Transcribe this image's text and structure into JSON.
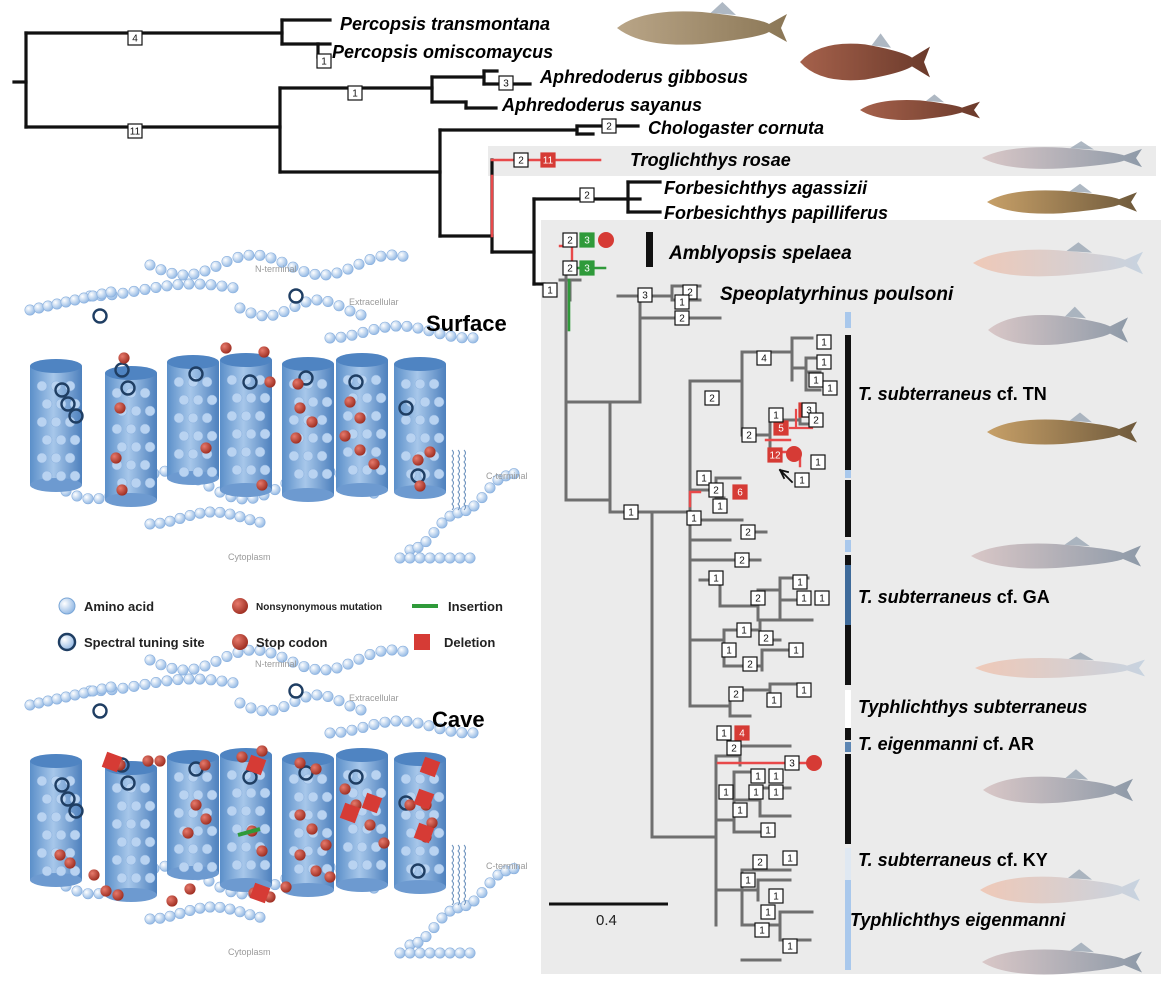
{
  "taxa": {
    "percopsis_transmontana": "Percopsis transmontana",
    "percopsis_omiscomaycus": "Percopsis omiscomaycus",
    "aphredoderus_gibbosus": "Aphredoderus gibbosus",
    "aphredoderus_sayanus": "Aphredoderus sayanus",
    "chologaster_cornuta": "Chologaster cornuta",
    "troglichthys_rosae": "Troglichthys rosae",
    "forbesichthys_agassizii": "Forbesichthys agassizii",
    "forbesichthys_papilliferus": "Forbesichthys papilliferus",
    "amblyopsis_spelaea": "Amblyopsis spelaea",
    "speoplatyrhinus_poulsoni": "Speoplatyrhinus poulsoni"
  },
  "clades": {
    "tn_genus": "T. subterraneus",
    "tn_suffix": "cf. TN",
    "ga_genus": "T. subterraneus",
    "ga_suffix": "cf. GA",
    "typhlichthys_subterraneus": "Typhlichthys subterraneus",
    "ar_genus": "T. eigenmanni",
    "ar_suffix": "cf. AR",
    "ky_genus": "T. subterraneus",
    "ky_suffix": "cf. KY",
    "typhlichthys_eigenmanni": "Typhlichthys eigenmanni"
  },
  "panels": {
    "surface_title": "Surface",
    "cave_title": "Cave",
    "n_terminal": "N-terminal",
    "c_terminal": "C-terminal",
    "extracellular": "Extracellular",
    "cytoplasm": "Cytoplasm"
  },
  "legend": {
    "amino_acid": "Amino acid",
    "nonsynonymous": "Nonsynonymous mutation",
    "insertion": "Insertion",
    "spectral": "Spectral tuning site",
    "stop_codon": "Stop codon",
    "deletion": "Deletion"
  },
  "scale_bar": {
    "label": "0.4",
    "value": 0.4
  },
  "mutation_counts": {
    "percopsis_stem": "4",
    "percopsis_omiscomaycus": "1",
    "aphredoderus_stem": "1",
    "aphredoderus_gibbosus": "3",
    "root_lower": "11",
    "chologaster": "2",
    "troglichthys_black": "2",
    "troglichthys_red": "11",
    "forbesichthys": "2",
    "amblyopsis_black": "2",
    "amblyopsis_green": "3",
    "amblyopsis_green2": "3",
    "amblyopsis_node": "2",
    "cave_node": "1",
    "speoplatyrhinus": "3",
    "red_5": "5",
    "red_6a": "6",
    "red_12": "12",
    "red_6b": "6",
    "red_4": "4",
    "red_3": "3"
  },
  "colors": {
    "tree_black": "#111111",
    "tree_grey": "#6f6f6f",
    "lineage_red": "#e8494a",
    "insertion_green": "#2f9a3a",
    "panel_bg": "#ebebeb",
    "helix_blue": "#7aa6d6",
    "bead_blue": "#a9c8ec",
    "mutation_red": "#b23a2e"
  },
  "icons": [
    "fish-photo",
    "amino-acid-bead",
    "spectral-tuning-site-icon",
    "stop-codon-icon",
    "nonsynonymous-mutation-icon",
    "insertion-icon",
    "deletion-icon"
  ]
}
